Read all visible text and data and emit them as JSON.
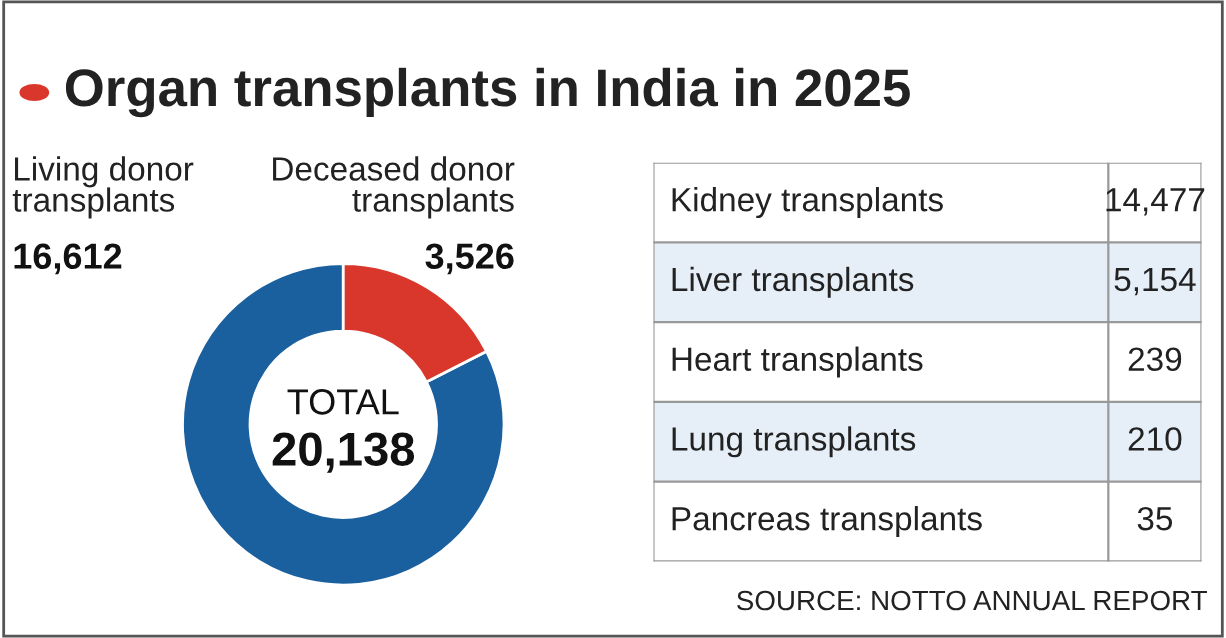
{
  "chart_data": [
    {
      "type": "donut",
      "title": "Organ transplants in India in 2025",
      "categories": [
        "Living donor\ntransplants",
        "Deceased donor\ntransplants"
      ],
      "values": [
        16612,
        3526
      ],
      "colors": [
        "#1a5f9e",
        "#d9372b"
      ],
      "value_labels": [
        "16,612",
        "3,526"
      ],
      "annotations": [
        "TOTAL",
        "20,138"
      ]
    },
    {
      "type": "other",
      "annotations": [
        "Kidney transplants",
        "14,477",
        "Liver transplants",
        "5,154",
        "Heart transplants",
        "239",
        "Lung transplants",
        "210",
        "Pancreas transplants",
        "35",
        "SOURCE: NOTTO ANNUAL REPORT"
      ]
    }
  ]
}
